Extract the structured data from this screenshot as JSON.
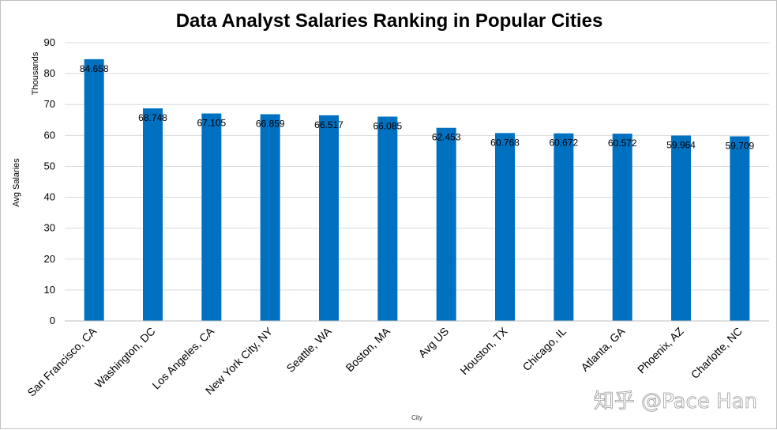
{
  "chart_data": {
    "type": "bar",
    "title": "Data Analyst Salaries Ranking in Popular Cities",
    "xlabel": "City",
    "ylabel": "Avg Salaries",
    "yunit": "Thousands",
    "ylim": [
      0,
      90
    ],
    "yticks": [
      0,
      10,
      20,
      30,
      40,
      50,
      60,
      70,
      80,
      90
    ],
    "grid": true,
    "categories": [
      "San Francisco, CA",
      "Washington, DC",
      "Los Angeles, CA",
      "New York City, NY",
      "Seattle, WA",
      "Boston, MA",
      "Avg US",
      "Houston, TX",
      "Chicago, IL",
      "Atlanta, GA",
      "Phoenix, AZ",
      "Charlotte, NC"
    ],
    "values": [
      84.658,
      68.748,
      67.105,
      66.859,
      66.517,
      66.085,
      62.453,
      60.768,
      60.672,
      60.572,
      59.964,
      59.709
    ],
    "data_labels": [
      "84.658",
      "68.748",
      "67.105",
      "66.859",
      "66.517",
      "66.085",
      "62.453",
      "60.768",
      "60.672",
      "60.572",
      "59.964",
      "59.709"
    ],
    "bar_color": "#0070c0",
    "grid_color": "#d9d9d9"
  },
  "watermark": "知乎 @Pace Han"
}
